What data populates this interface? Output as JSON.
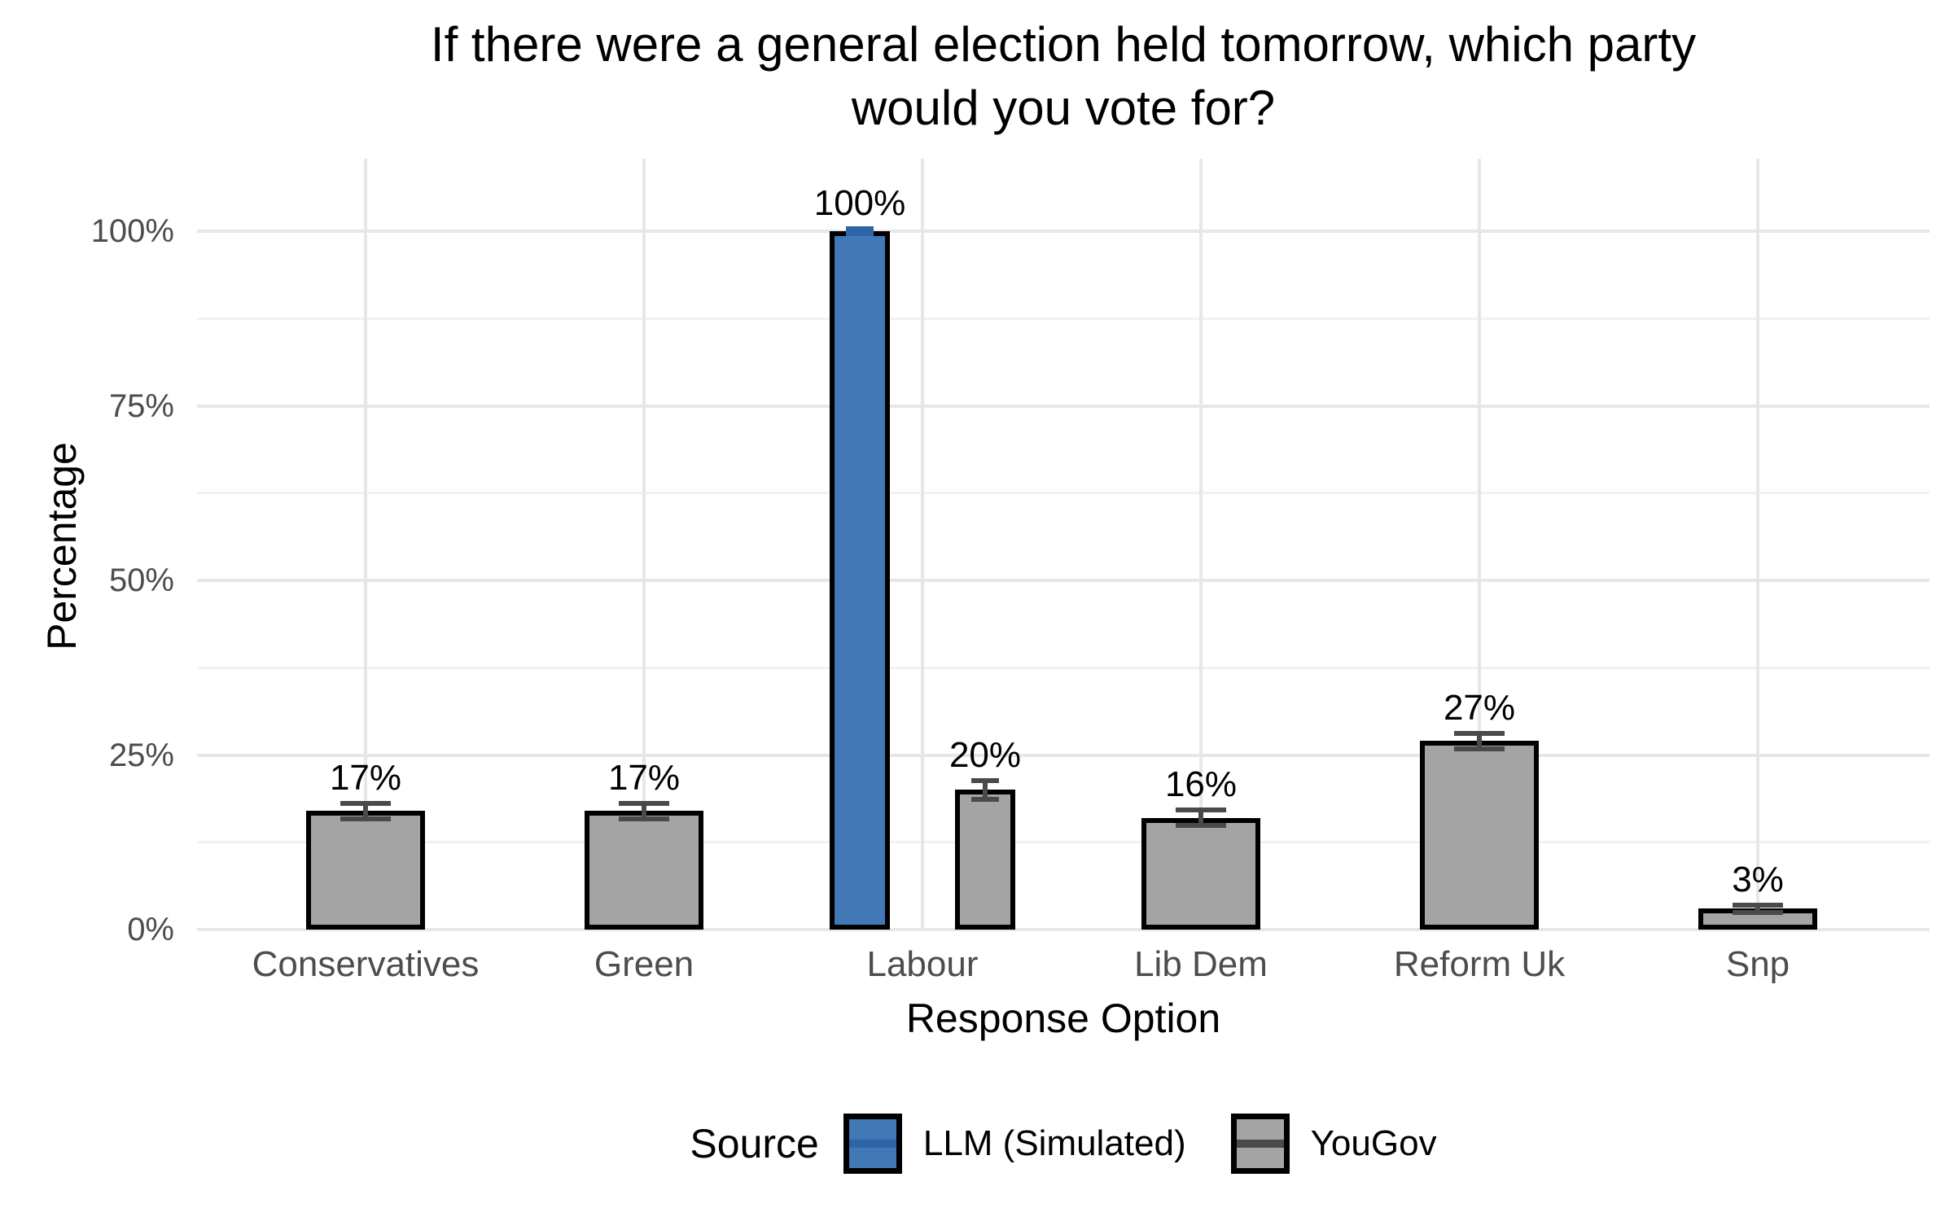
{
  "chart_data": {
    "type": "bar",
    "title": "If there were a general election held tomorrow, which party would you vote for?",
    "title_lines": [
      "If there were a general election held tomorrow, which party",
      "would you vote for?"
    ],
    "xlabel": "Response Option",
    "ylabel": "Percentage",
    "categories": [
      "Conservatives",
      "Green",
      "Labour",
      "Lib Dem",
      "Reform Uk",
      "Snp"
    ],
    "series": [
      {
        "name": "LLM (Simulated)",
        "color": "#4278b5",
        "errorbar_color": "#2f64a7",
        "values": [
          null,
          null,
          100,
          null,
          null,
          null
        ],
        "errors": [
          null,
          null,
          0.3,
          null,
          null,
          null
        ],
        "value_labels": [
          null,
          null,
          "100%",
          null,
          null,
          null
        ]
      },
      {
        "name": "YouGov",
        "color": "#a4a4a4",
        "errorbar_color": "#4a4a4a",
        "values": [
          17,
          17,
          20,
          16,
          27,
          3
        ],
        "errors": [
          1.1,
          1.1,
          1.3,
          1.1,
          1.1,
          0.5
        ],
        "value_labels": [
          "17%",
          "17%",
          "20%",
          "16%",
          "27%",
          "3%"
        ]
      }
    ],
    "bar_outline_color": "#000000",
    "background_color": "#ffffff",
    "grid": {
      "horizontal_major": [
        0,
        25,
        50,
        75,
        100
      ],
      "horizontal_minor": [
        12.5,
        37.5,
        62.5,
        87.5
      ],
      "vertical_major": "category-centers"
    },
    "yticks": [
      0,
      25,
      50,
      75,
      100
    ],
    "ytick_labels": [
      "0%",
      "25%",
      "50%",
      "75%",
      "100%"
    ],
    "ylim": [
      0,
      110
    ],
    "legend": {
      "title": "Source",
      "position": "bottom",
      "entries": [
        "LLM (Simulated)",
        "YouGov"
      ]
    }
  }
}
